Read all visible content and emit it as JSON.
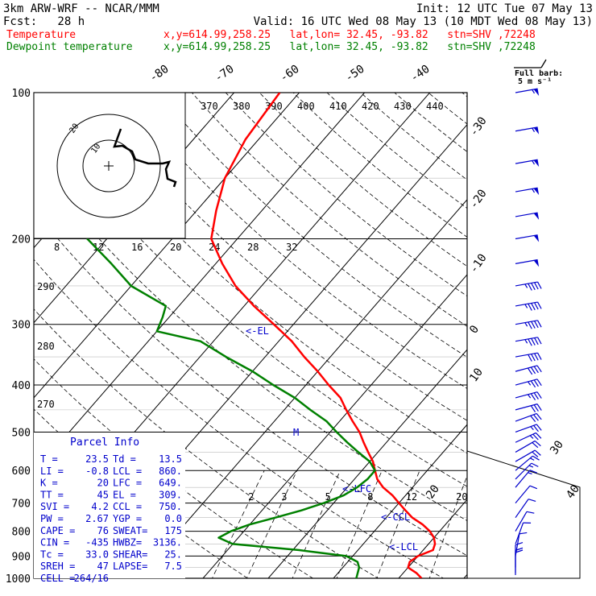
{
  "header": {
    "model": "3km ARW-WRF -- NCAR/MMM",
    "init": "Init: 12 UTC Tue 07 May 13",
    "fcst": "Fcst:   28 h",
    "valid": "Valid: 16 UTC Wed 08 May 13 (10 MDT Wed 08 May 13)",
    "temp_label": "Temperature",
    "temp_info": "x,y=614.99,258.25   lat,lon= 32.45, -93.82   stn=SHV ,72248",
    "dew_label": "Dewpoint temperature",
    "dew_info": "x,y=614.99,258.25   lat,lon= 32.45, -93.82   stn=SHV ,72248",
    "temp_color": "#ff0000",
    "dew_color": "#008000"
  },
  "barb_title": [
    "Full barb:",
    "5 m s⁻¹"
  ],
  "parcel": {
    "title": "Parcel Info",
    "rows": [
      [
        "T  =",
        "23.5",
        "Td =",
        "13.5"
      ],
      [
        "LI =",
        "-0.8",
        "LCL =",
        "860."
      ],
      [
        "K  =",
        "20",
        "LFC =",
        "649."
      ],
      [
        "TT =",
        "45",
        "EL  =",
        "309."
      ],
      [
        "SVI =",
        "4.2",
        "CCL =",
        "750."
      ],
      [
        "PW =",
        "2.67",
        "YGP =",
        "0.0"
      ],
      [
        "CAPE =",
        "76",
        "SWEAT=",
        "175"
      ],
      [
        "CIN =",
        "-435",
        "HWBZ=",
        "3136."
      ],
      [
        "Tc =",
        "33.0",
        "SHEAR=",
        "25."
      ],
      [
        "SREH =",
        "47",
        "LAPSE=",
        "7.5"
      ],
      [
        "CELL =",
        "264/16",
        "",
        ""
      ]
    ]
  },
  "hodograph": {
    "units": "kts",
    "speed_ticks": [
      "8",
      "12",
      "16",
      "20",
      "24",
      "28",
      "32"
    ]
  },
  "chart_data": {
    "type": "line",
    "title": "",
    "pressure_levels": [
      100,
      200,
      300,
      400,
      500,
      600,
      700,
      800,
      900,
      1000
    ],
    "isotherm_labels": [
      "-80",
      "-70",
      "-60",
      "-50",
      "-40",
      "-30",
      "-20",
      "-10",
      "0",
      "10",
      "20",
      "30",
      "40"
    ],
    "theta_labels": [
      "370",
      "380",
      "390",
      "400",
      "410",
      "420",
      "430",
      "440"
    ],
    "theta_left_labels": [
      "290",
      "280",
      "270"
    ],
    "mixing_ratio_labels": [
      "2",
      "3",
      "5",
      "8",
      "12",
      "20"
    ],
    "annotations": [
      "<-EL",
      "<-LFC",
      "<-CCL",
      "<-LCL",
      "M"
    ],
    "series": [
      {
        "name": "Temperature",
        "color": "#ff0000",
        "points": [
          [
            1000,
            23.5
          ],
          [
            975,
            22
          ],
          [
            950,
            20
          ],
          [
            925,
            19.5
          ],
          [
            900,
            20
          ],
          [
            875,
            21.5
          ],
          [
            850,
            21
          ],
          [
            825,
            20
          ],
          [
            800,
            18.5
          ],
          [
            775,
            16.5
          ],
          [
            750,
            14
          ],
          [
            725,
            12
          ],
          [
            700,
            10
          ],
          [
            675,
            8
          ],
          [
            650,
            5.5
          ],
          [
            625,
            3.5
          ],
          [
            600,
            2
          ],
          [
            575,
            0.5
          ],
          [
            550,
            -1.5
          ],
          [
            525,
            -3.5
          ],
          [
            500,
            -5.5
          ],
          [
            475,
            -8
          ],
          [
            450,
            -10.5
          ],
          [
            425,
            -13
          ],
          [
            400,
            -16.5
          ],
          [
            375,
            -20
          ],
          [
            350,
            -24
          ],
          [
            325,
            -28
          ],
          [
            300,
            -33
          ],
          [
            275,
            -38.5
          ],
          [
            250,
            -44
          ],
          [
            225,
            -49
          ],
          [
            200,
            -54
          ],
          [
            175,
            -57
          ],
          [
            150,
            -60
          ],
          [
            125,
            -62
          ],
          [
            100,
            -63
          ]
        ]
      },
      {
        "name": "Dewpoint temperature",
        "color": "#008000",
        "points": [
          [
            1000,
            13.5
          ],
          [
            975,
            13
          ],
          [
            950,
            12.5
          ],
          [
            925,
            11.5
          ],
          [
            900,
            9
          ],
          [
            875,
            1
          ],
          [
            850,
            -10
          ],
          [
            825,
            -13
          ],
          [
            800,
            -12
          ],
          [
            775,
            -10
          ],
          [
            750,
            -7
          ],
          [
            725,
            -4
          ],
          [
            700,
            -1.5
          ],
          [
            675,
            0.5
          ],
          [
            650,
            1.5
          ],
          [
            625,
            2
          ],
          [
            600,
            2
          ],
          [
            575,
            0
          ],
          [
            550,
            -3
          ],
          [
            525,
            -6
          ],
          [
            500,
            -9
          ],
          [
            475,
            -12
          ],
          [
            450,
            -16
          ],
          [
            425,
            -20
          ],
          [
            400,
            -25
          ],
          [
            375,
            -30
          ],
          [
            350,
            -36
          ],
          [
            325,
            -42
          ],
          [
            310,
            -50
          ],
          [
            290,
            -51
          ],
          [
            275,
            -52
          ],
          [
            250,
            -60
          ],
          [
            225,
            -66
          ],
          [
            200,
            -73
          ],
          [
            175,
            -77
          ],
          [
            150,
            -81
          ],
          [
            125,
            -84
          ],
          [
            100,
            -87
          ]
        ]
      }
    ],
    "wind_barbs": [
      {
        "p": 100,
        "dir": 260,
        "spd": 55
      },
      {
        "p": 120,
        "dir": 260,
        "spd": 55
      },
      {
        "p": 140,
        "dir": 260,
        "spd": 55
      },
      {
        "p": 160,
        "dir": 260,
        "spd": 55
      },
      {
        "p": 180,
        "dir": 260,
        "spd": 50
      },
      {
        "p": 200,
        "dir": 260,
        "spd": 50
      },
      {
        "p": 225,
        "dir": 260,
        "spd": 50
      },
      {
        "p": 250,
        "dir": 260,
        "spd": 45
      },
      {
        "p": 275,
        "dir": 260,
        "spd": 45
      },
      {
        "p": 300,
        "dir": 260,
        "spd": 45
      },
      {
        "p": 325,
        "dir": 260,
        "spd": 45
      },
      {
        "p": 350,
        "dir": 260,
        "spd": 40
      },
      {
        "p": 375,
        "dir": 255,
        "spd": 40
      },
      {
        "p": 400,
        "dir": 255,
        "spd": 35
      },
      {
        "p": 425,
        "dir": 255,
        "spd": 35
      },
      {
        "p": 450,
        "dir": 255,
        "spd": 30
      },
      {
        "p": 475,
        "dir": 250,
        "spd": 30
      },
      {
        "p": 500,
        "dir": 250,
        "spd": 25
      },
      {
        "p": 525,
        "dir": 245,
        "spd": 25
      },
      {
        "p": 550,
        "dir": 240,
        "spd": 20
      },
      {
        "p": 575,
        "dir": 240,
        "spd": 20
      },
      {
        "p": 600,
        "dir": 230,
        "spd": 15
      },
      {
        "p": 625,
        "dir": 225,
        "spd": 15
      },
      {
        "p": 650,
        "dir": 220,
        "spd": 15
      },
      {
        "p": 700,
        "dir": 220,
        "spd": 10
      },
      {
        "p": 750,
        "dir": 215,
        "spd": 10
      },
      {
        "p": 800,
        "dir": 210,
        "spd": 10
      },
      {
        "p": 850,
        "dir": 200,
        "spd": 10
      },
      {
        "p": 900,
        "dir": 190,
        "spd": 10
      },
      {
        "p": 950,
        "dir": 180,
        "spd": 10
      },
      {
        "p": 975,
        "dir": 180,
        "spd": 10
      },
      {
        "p": 1000,
        "dir": 180,
        "spd": 10
      }
    ]
  }
}
